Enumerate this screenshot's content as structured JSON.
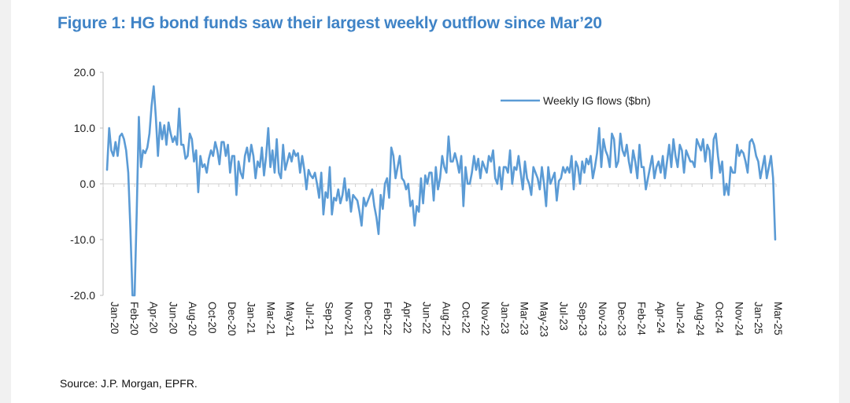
{
  "title": "Figure 1: HG bond funds saw their largest weekly outflow since Mar’20",
  "source": "Source: J.P. Morgan, EPFR.",
  "colors": {
    "title": "#3f83c6",
    "series": "#5b9bd5"
  },
  "chart_data": {
    "type": "line",
    "title": "Figure 1: HG bond funds saw their largest weekly outflow since Mar’20",
    "xlabel": "",
    "ylabel": "",
    "ylim": [
      -20,
      20
    ],
    "yticks": [
      "20.0",
      "10.0",
      "0.0",
      "-10.0",
      "-20.0"
    ],
    "ytick_values": [
      20,
      10,
      0,
      -10,
      -20
    ],
    "xticks": [
      "Jan-20",
      "Feb-20",
      "Apr-20",
      "Jun-20",
      "Aug-20",
      "Oct-20",
      "Dec-20",
      "Jan-21",
      "Mar-21",
      "May-21",
      "Jul-21",
      "Sep-21",
      "Nov-21",
      "Dec-21",
      "Feb-22",
      "Apr-22",
      "Jun-22",
      "Aug-22",
      "Oct-22",
      "Nov-22",
      "Jan-23",
      "Mar-23",
      "May-23",
      "Jul-23",
      "Sep-23",
      "Nov-23",
      "Dec-23",
      "Feb-24",
      "Apr-24",
      "Jun-24",
      "Aug-24",
      "Oct-24",
      "Nov-24",
      "Jan-25",
      "Mar-25"
    ],
    "grid": false,
    "legend": "top-right",
    "series": [
      {
        "name": "Weekly IG flows ($bn)",
        "values": [
          2.5,
          10,
          6,
          5,
          7.5,
          5,
          8.5,
          9,
          8,
          6,
          2,
          -8,
          -20,
          -20,
          -5,
          12,
          3,
          6,
          5.5,
          6.5,
          9,
          14,
          17.5,
          12,
          5,
          11,
          8,
          10.5,
          7,
          11,
          9,
          7.5,
          8.5,
          7,
          13.5,
          7,
          7,
          4.5,
          5,
          9,
          8,
          4,
          6,
          -1.5,
          5,
          3,
          3.5,
          2,
          4.5,
          6,
          5,
          7.5,
          6,
          3.5,
          7.5,
          7.5,
          5,
          7,
          2,
          5,
          5,
          -2,
          4,
          2,
          1,
          5,
          6.5,
          4,
          7,
          5,
          1,
          4,
          3,
          6.5,
          1.5,
          5,
          10,
          3,
          6,
          2,
          8,
          2,
          1,
          7,
          2.5,
          4,
          5.5,
          4,
          6,
          5,
          5.5,
          2,
          5,
          2.5,
          -1,
          2.5,
          1.5,
          1,
          2,
          0,
          -2.5,
          2,
          -5.5,
          -1.5,
          -2.5,
          3,
          -5.5,
          -2.5,
          -3,
          -1,
          -3.5,
          -2,
          1,
          -3,
          -1,
          -5,
          -2,
          -2.5,
          -3,
          -5,
          -7.5,
          -2.5,
          -4,
          -3,
          -2,
          -1,
          -4,
          -6,
          -9,
          -2,
          -4.5,
          0,
          1,
          -2.5,
          6.5,
          5,
          1,
          3,
          5,
          1,
          0.5,
          -1,
          0,
          -4,
          -3,
          -7.5,
          -4,
          -5,
          1,
          -3.5,
          1.5,
          0,
          2,
          2,
          -3,
          3,
          -1,
          1,
          5,
          3,
          2,
          8.5,
          4,
          4,
          5.5,
          4,
          2,
          5,
          -4,
          3,
          0,
          0,
          2,
          5,
          2.5,
          4.5,
          1,
          4,
          3,
          2,
          5,
          4,
          6,
          1,
          0,
          3,
          -1,
          3,
          3,
          2,
          6,
          0,
          3,
          2.5,
          5,
          2,
          -1,
          4,
          1,
          0,
          -2,
          3,
          2,
          1,
          -1,
          3,
          0,
          -4,
          3,
          0,
          1,
          2,
          -3,
          0.5,
          1,
          3,
          2,
          3,
          2,
          5,
          -1,
          4,
          3,
          0,
          4,
          2,
          4.5,
          3.5,
          5,
          1,
          3,
          5.5,
          10,
          3,
          8,
          6,
          5,
          3,
          9,
          8,
          3,
          4,
          9,
          6,
          5,
          7,
          4,
          2,
          6,
          4,
          1,
          7,
          3,
          3,
          -1,
          1,
          3,
          5,
          1,
          3,
          4,
          2,
          5,
          1,
          4,
          7,
          3,
          8,
          5,
          3,
          7,
          6,
          2,
          6,
          5,
          4,
          4,
          3,
          8,
          7,
          6,
          8,
          4,
          7,
          6,
          1,
          8,
          9,
          5,
          2,
          4,
          -2,
          0,
          -2,
          3,
          2,
          2,
          7,
          5,
          6,
          5.5,
          4,
          2,
          7.5,
          8,
          7,
          5,
          4,
          1,
          3,
          5,
          1,
          3,
          5,
          1,
          -10
        ]
      }
    ]
  }
}
